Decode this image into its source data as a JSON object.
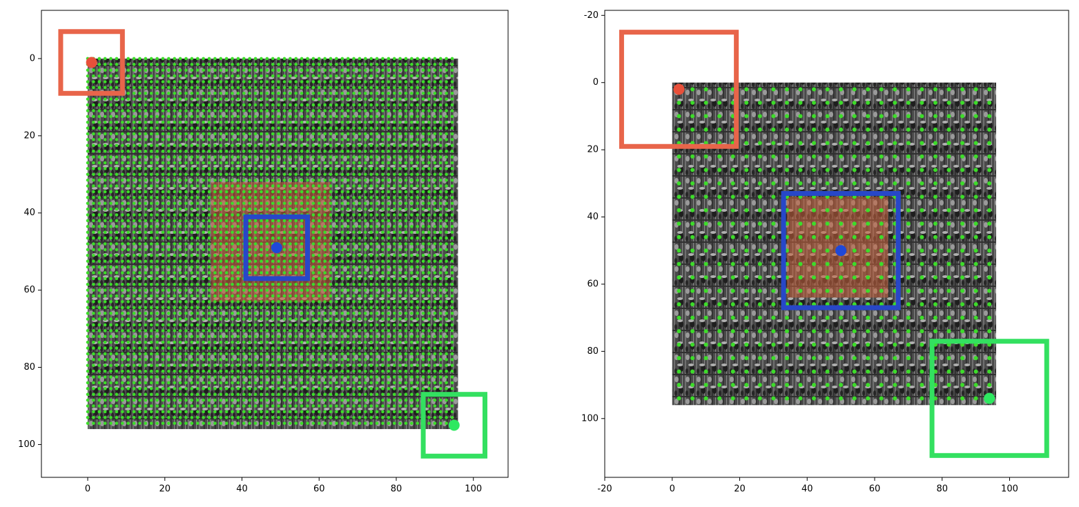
{
  "chart_data": [
    {
      "type": "scatter",
      "xlim": [
        -12,
        109
      ],
      "ylim": [
        108.5,
        -12.5
      ],
      "xticks": [
        0,
        20,
        40,
        60,
        80,
        100
      ],
      "yticks": [
        0,
        20,
        40,
        60,
        80,
        100
      ],
      "image_extent": [
        0,
        96
      ],
      "highlight": {
        "x": [
          32,
          63
        ],
        "y": [
          32,
          63
        ],
        "color": "#c8603a"
      },
      "dot_grid": {
        "start": 0,
        "stop": 95,
        "step": 1.5,
        "color": "#3ddc2a"
      },
      "points": [
        {
          "x": 1,
          "y": 1,
          "color": "#e8503a"
        },
        {
          "x": 49,
          "y": 49,
          "color": "#1f48d8"
        },
        {
          "x": 95,
          "y": 95,
          "color": "#2ee860"
        }
      ],
      "boxes": [
        {
          "x": [
            -7,
            9
          ],
          "y": [
            -7,
            9
          ],
          "color": "#e8654a"
        },
        {
          "x": [
            41,
            57
          ],
          "y": [
            41,
            57
          ],
          "color": "#2747c8"
        },
        {
          "x": [
            87,
            103
          ],
          "y": [
            87,
            103
          ],
          "color": "#33e060"
        }
      ]
    },
    {
      "type": "scatter",
      "xlim": [
        -20,
        117.5
      ],
      "ylim": [
        117.5,
        -21.5
      ],
      "xticks": [
        -20,
        0,
        20,
        40,
        60,
        80,
        100
      ],
      "yticks": [
        -20,
        0,
        20,
        40,
        60,
        80,
        100
      ],
      "image_extent": [
        0,
        96
      ],
      "highlight": {
        "x": [
          34,
          64
        ],
        "y": [
          34,
          64
        ],
        "color": "#c8603a"
      },
      "dot_grid": {
        "start": 2,
        "stop": 94,
        "step": 4,
        "color": "#3ddc2a"
      },
      "points": [
        {
          "x": 2,
          "y": 2,
          "color": "#e8503a"
        },
        {
          "x": 50,
          "y": 50,
          "color": "#1f48d8"
        },
        {
          "x": 94,
          "y": 94,
          "color": "#2ee860"
        }
      ],
      "boxes": [
        {
          "x": [
            -15,
            19
          ],
          "y": [
            -15,
            19
          ],
          "color": "#e8654a"
        },
        {
          "x": [
            33,
            67
          ],
          "y": [
            33,
            67
          ],
          "color": "#2747c8"
        },
        {
          "x": [
            77,
            111
          ],
          "y": [
            77,
            111
          ],
          "color": "#33e060"
        }
      ]
    }
  ]
}
